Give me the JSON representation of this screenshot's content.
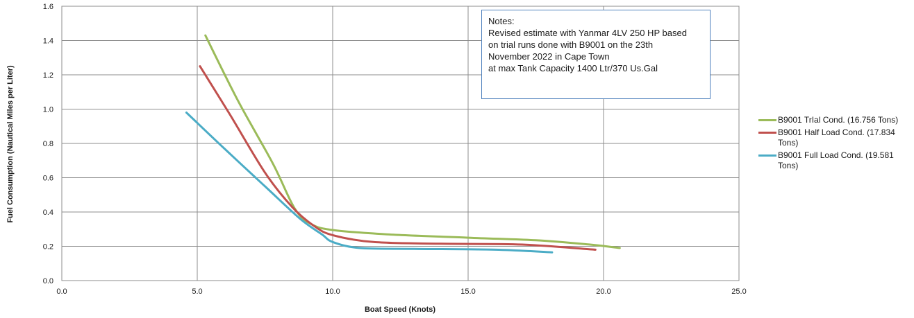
{
  "chart_data": {
    "type": "line",
    "title": "",
    "xlabel": "Boat Speed (Knots)",
    "ylabel": "Fuel Consumption (Nautical Miles per Liter)",
    "xlim": [
      0,
      25
    ],
    "ylim": [
      0,
      1.6
    ],
    "x_ticks": [
      "0.0",
      "5.0",
      "10.0",
      "15.0",
      "20.0",
      "25.0"
    ],
    "y_ticks": [
      "0.0",
      "0.2",
      "0.4",
      "0.6",
      "0.8",
      "1.0",
      "1.2",
      "1.4",
      "1.6"
    ],
    "grid": true,
    "legend_position": "right",
    "series": [
      {
        "name": "B9001 TrIal Cond. (16.756 Tons)",
        "color": "#9bbb59",
        "x": [
          5.3,
          6.5,
          7.8,
          8.6,
          9.2,
          10.0,
          12.0,
          15.0,
          17.5,
          19.5,
          20.6
        ],
        "y": [
          1.43,
          1.05,
          0.68,
          0.42,
          0.33,
          0.295,
          0.27,
          0.25,
          0.235,
          0.21,
          0.19
        ]
      },
      {
        "name": "B9001 Half Load Cond. (17.834 Tons)",
        "color": "#c0504d",
        "x": [
          5.1,
          6.2,
          7.5,
          8.5,
          9.3,
          10.0,
          11.5,
          14.0,
          17.0,
          19.7
        ],
        "y": [
          1.25,
          0.97,
          0.63,
          0.43,
          0.32,
          0.265,
          0.225,
          0.215,
          0.21,
          0.18
        ]
      },
      {
        "name": "B9001 Full Load Cond. (19.581 Tons)",
        "color": "#4bacc6",
        "x": [
          4.6,
          6.0,
          7.5,
          8.8,
          9.6,
          10.0,
          11.0,
          13.0,
          16.0,
          18.1
        ],
        "y": [
          0.98,
          0.77,
          0.55,
          0.36,
          0.27,
          0.225,
          0.19,
          0.185,
          0.18,
          0.165
        ]
      }
    ]
  },
  "notes": {
    "lines": [
      "Notes:",
      "Revised estimate with Yanmar 4LV 250 HP based",
      "on trial runs done with B9001 on the 23th",
      "November 2022 in Cape Town",
      "at max Tank Capacity 1400 Ltr/370 Us.Gal"
    ]
  }
}
